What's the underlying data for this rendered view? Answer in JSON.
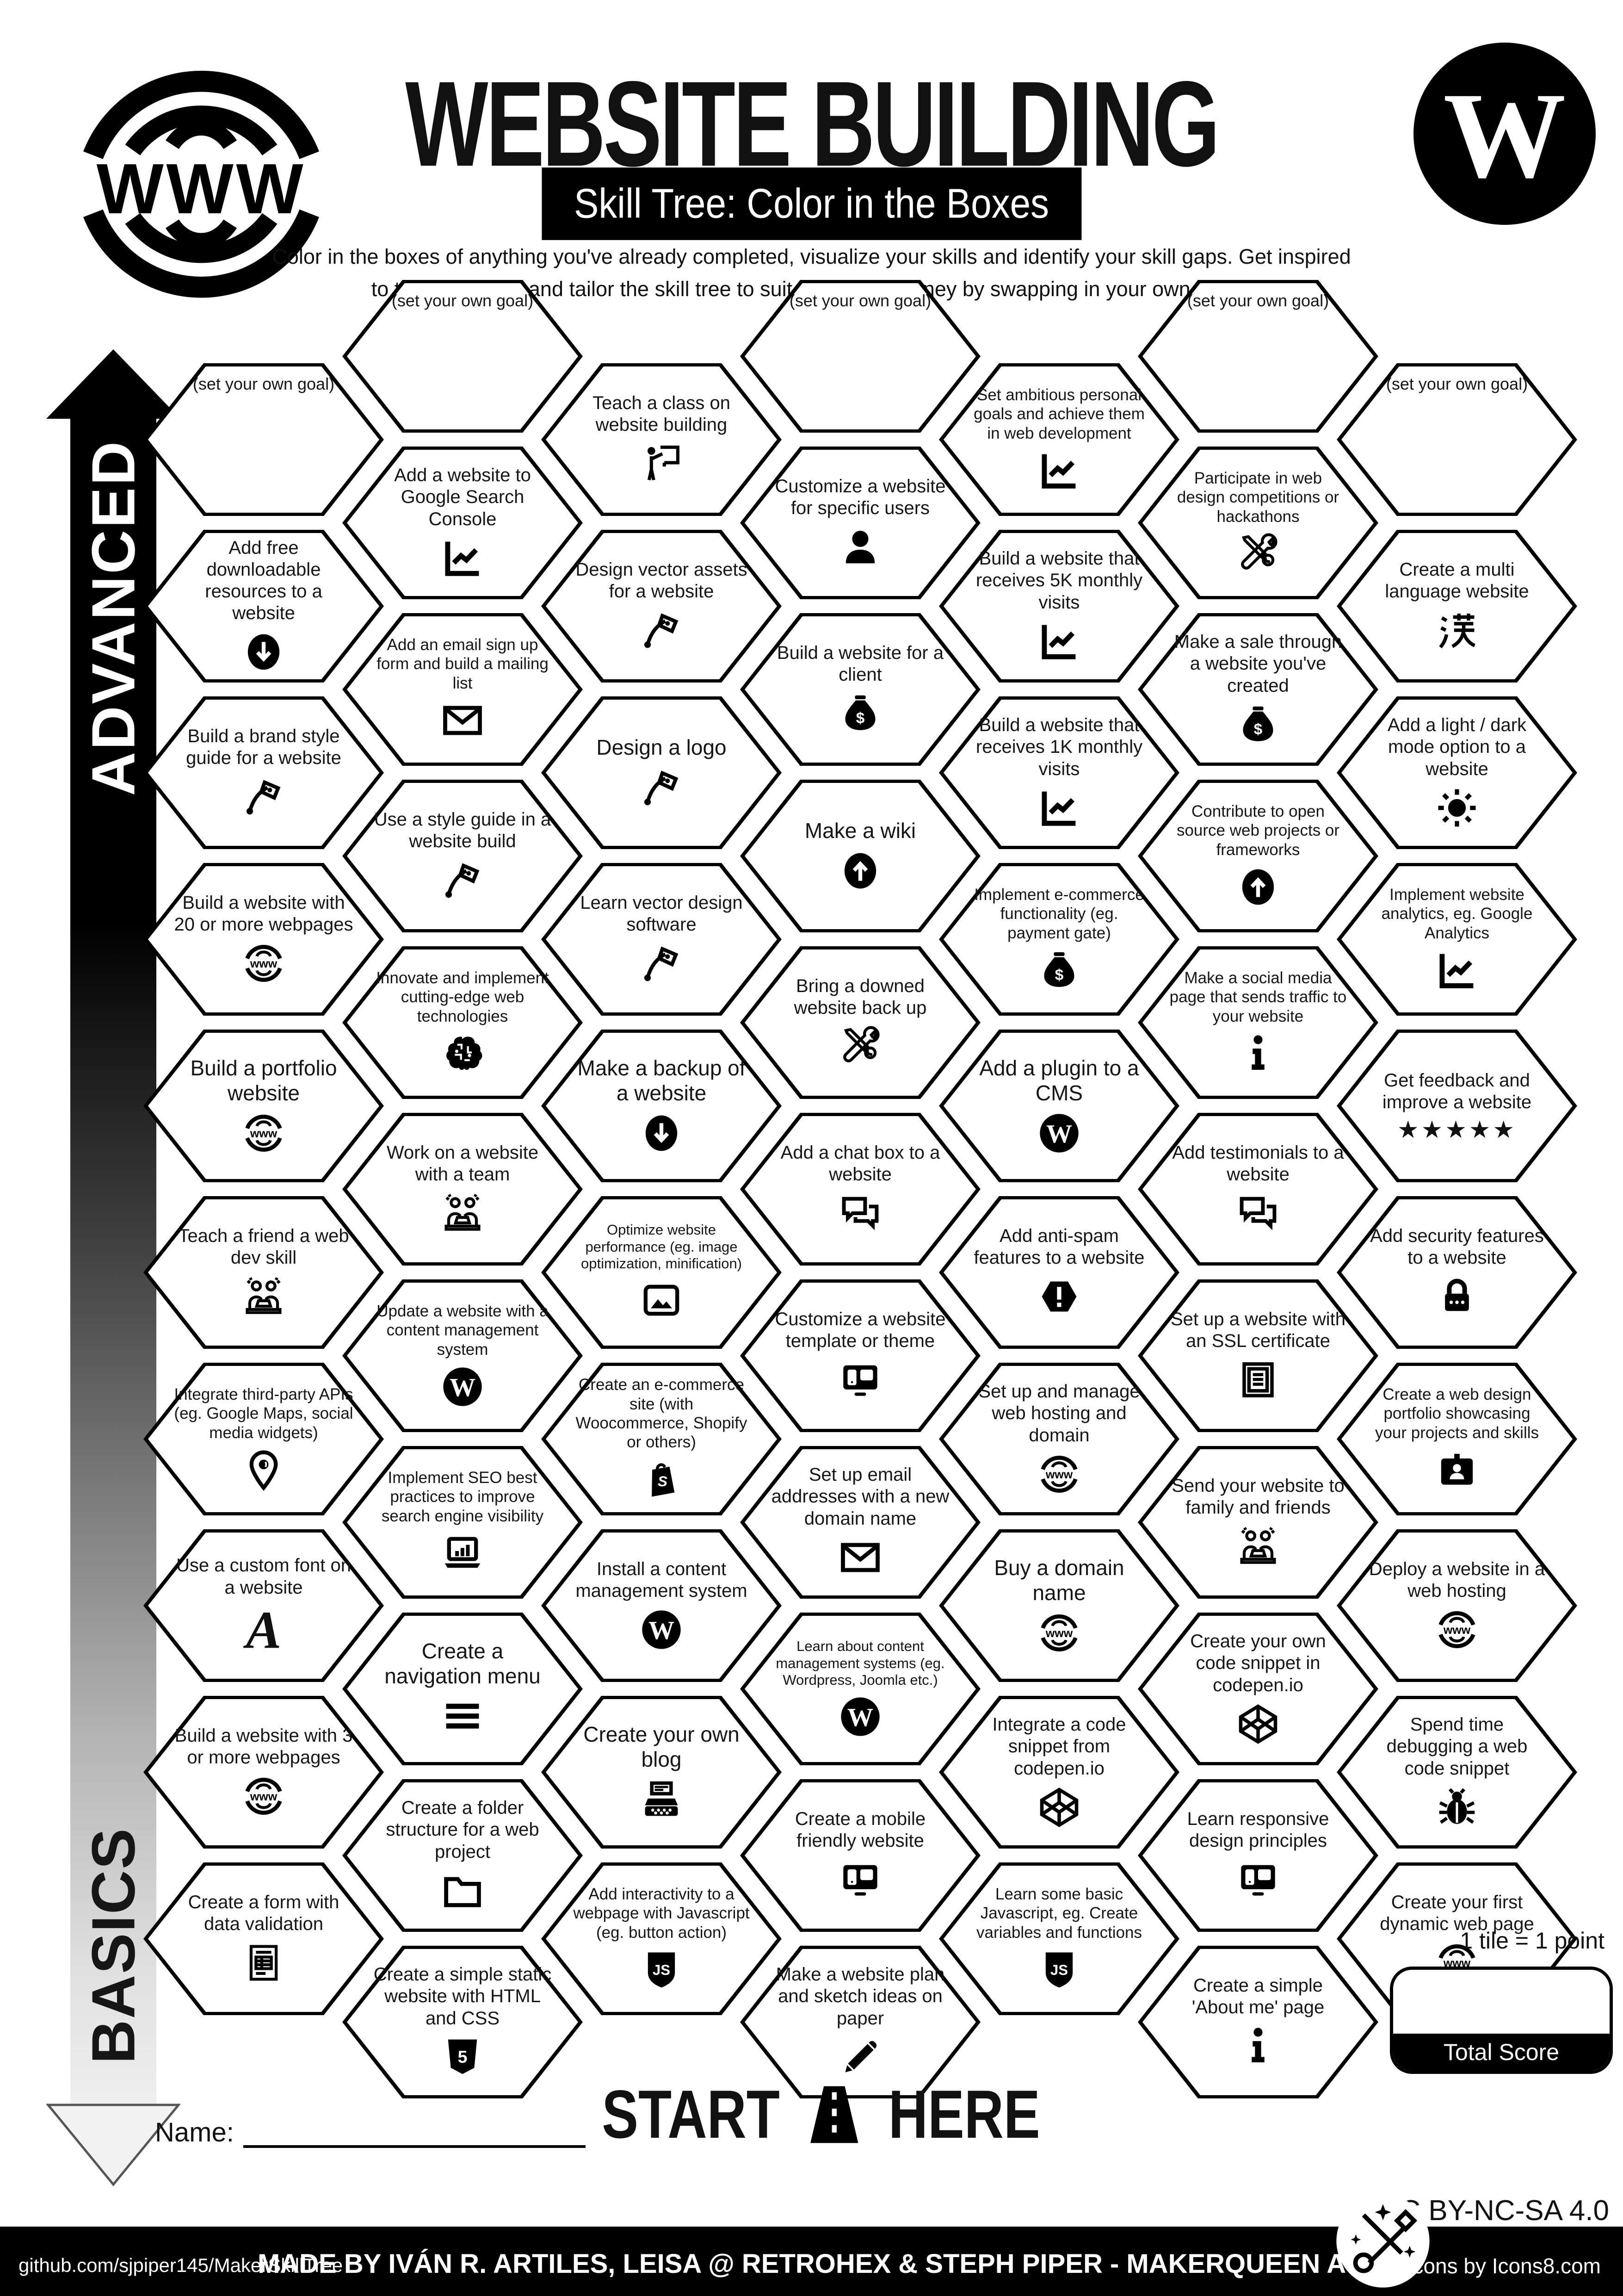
{
  "header": {
    "title": "WEBSITE BUILDING",
    "subtitle": "Skill Tree: Color in the Boxes",
    "description_line1": "Color in the boxes of anything you've already completed, visualize your skills and identify your skill gaps.  Get inspired",
    "description_line2": "to try new things and tailor the skill tree to suit your own journey by swapping in your own goals.",
    "logo_left": "www-globe-icon",
    "logo_right": "wordpress-icon"
  },
  "axis": {
    "top_label": "ADVANCED",
    "bottom_label": "BASICS"
  },
  "start_marker": {
    "start": "START",
    "here": "HERE",
    "icon": "road-icon"
  },
  "name_field": {
    "label": "Name:"
  },
  "score": {
    "tile_note": "1 tile = 1 point",
    "total_label": "Total Score"
  },
  "footer": {
    "left": "github.com/sjpiper145/MakerSkillTree",
    "center": "MADE BY IVÁN R. ARTILES, LEISA @ RETROHEX  & STEPH PIPER  -  MAKERQUEEN AU",
    "right": "Icons by Icons8.com",
    "license": "CC BY-NC-SA 4.0",
    "badge_icon": "tools-badge-icon"
  },
  "columns": [
    {
      "hexes": [
        {
          "label": "(set your own goal)",
          "icon": null,
          "goal": true
        },
        {
          "label": "Add free downloadable resources to a website",
          "icon": "download-circle"
        },
        {
          "label": "Build a brand style guide for a website",
          "icon": "pen-tool"
        },
        {
          "label": "Build a website with 20 or more webpages",
          "icon": "globe-www"
        },
        {
          "label": "Build a portfolio website",
          "icon": "globe-www"
        },
        {
          "label": "Teach a friend a web dev skill",
          "icon": "people-laptop"
        },
        {
          "label": "Integrate third-party APIs (eg. Google Maps, social media widgets)",
          "icon": "map-pin"
        },
        {
          "label": "Use a custom font on a website",
          "icon": "letter-a"
        },
        {
          "label": "Build a website with 3 or more webpages",
          "icon": "globe-www"
        },
        {
          "label": "Create a form with data validation",
          "icon": "form-doc"
        }
      ]
    },
    {
      "hexes": [
        {
          "label": "(set your own goal)",
          "icon": null,
          "goal": true
        },
        {
          "label": "Add a website to Google Search Console",
          "icon": "chart-line"
        },
        {
          "label": "Add an email sign up form and build a mailing list",
          "icon": "envelope"
        },
        {
          "label": "Use a style guide in a website build",
          "icon": "pen-tool"
        },
        {
          "label": "Innovate and implement cutting-edge web technologies",
          "icon": "brain-chip"
        },
        {
          "label": "Work on a website with a team",
          "icon": "people-laptop"
        },
        {
          "label": "Update a website with a content management system",
          "icon": "wordpress"
        },
        {
          "label": "Implement SEO best practices to improve search engine visibility",
          "icon": "laptop-chart"
        },
        {
          "label": "Create a navigation menu",
          "icon": "hamburger-menu"
        },
        {
          "label": "Create a folder structure for a web project",
          "icon": "folder"
        },
        {
          "label": "Create a simple static website with HTML and CSS",
          "icon": "html5-shield"
        }
      ]
    },
    {
      "hexes": [
        {
          "label": "Teach a class on website building",
          "icon": "person-whiteboard"
        },
        {
          "label": "Design vector assets for a website",
          "icon": "pen-tool"
        },
        {
          "label": "Design a logo",
          "icon": "pen-tool"
        },
        {
          "label": "Learn vector design software",
          "icon": "pen-tool"
        },
        {
          "label": "Make a backup of a website",
          "icon": "download-circle"
        },
        {
          "label": "Optimize website performance (eg. image optimization, minification)",
          "icon": "image-photo"
        },
        {
          "label": "Create an e-commerce site (with Woocommerce, Shopify or others)",
          "icon": "shopify-bag"
        },
        {
          "label": "Install a content management system",
          "icon": "wordpress"
        },
        {
          "label": "Create your own blog",
          "icon": "typewriter"
        },
        {
          "label": "Add interactivity to a webpage with Javascript (eg. button action)",
          "icon": "js-shield"
        }
      ]
    },
    {
      "hexes": [
        {
          "label": "(set your own goal)",
          "icon": null,
          "goal": true
        },
        {
          "label": "Customize a website for specific users",
          "icon": "person-bust"
        },
        {
          "label": "Build a website for a client",
          "icon": "money-bag"
        },
        {
          "label": "Make a wiki",
          "icon": "upload-circle"
        },
        {
          "label": "Bring a downed website back up",
          "icon": "tools-crossed"
        },
        {
          "label": "Add a chat box to a website",
          "icon": "chat-bubbles"
        },
        {
          "label": "Customize a website template or theme",
          "icon": "monitor-split"
        },
        {
          "label": "Set up email addresses with a new domain name",
          "icon": "envelope"
        },
        {
          "label": "Learn about content management systems (eg. Wordpress, Joomla etc.)",
          "icon": "wordpress"
        },
        {
          "label": "Create a mobile friendly website",
          "icon": "monitor-split"
        },
        {
          "label": "Make a website plan and sketch ideas on paper",
          "icon": "pencil"
        }
      ]
    },
    {
      "hexes": [
        {
          "label": "Set ambitious personal goals and achieve them in web development",
          "icon": "chart-line"
        },
        {
          "label": "Build a website that receives 5K monthly visits",
          "icon": "chart-line"
        },
        {
          "label": "Build a website that receives 1K monthly visits",
          "icon": "chart-line"
        },
        {
          "label": "Implement e-commerce functionality (eg. payment gate)",
          "icon": "money-bag"
        },
        {
          "label": "Add a plugin to a CMS",
          "icon": "wordpress"
        },
        {
          "label": "Add anti-spam features to a website",
          "icon": "hexagon-exclaim"
        },
        {
          "label": "Set up and manage web hosting and domain",
          "icon": "globe-www"
        },
        {
          "label": "Buy a domain name",
          "icon": "globe-www"
        },
        {
          "label": "Integrate a code snippet from codepen.io",
          "icon": "codepen-cube"
        },
        {
          "label": "Learn some basic Javascript, eg. Create variables and functions",
          "icon": "js-shield"
        }
      ]
    },
    {
      "hexes": [
        {
          "label": "(set your own goal)",
          "icon": null,
          "goal": true
        },
        {
          "label": "Participate in web design competitions or hackathons",
          "icon": "tools-crossed"
        },
        {
          "label": "Make a sale through a website you've created",
          "icon": "money-bag"
        },
        {
          "label": "Contribute to open source web projects or frameworks",
          "icon": "upload-circle"
        },
        {
          "label": "Make a social media page that sends traffic to your website",
          "icon": "info-i"
        },
        {
          "label": "Add testimonials to a website",
          "icon": "chat-bubbles"
        },
        {
          "label": "Set up a website with an SSL certificate",
          "icon": "certificate-doc"
        },
        {
          "label": "Send your website to family and friends",
          "icon": "people-laptop"
        },
        {
          "label": "Create your own code snippet in codepen.io",
          "icon": "codepen-cube"
        },
        {
          "label": "Learn responsive design principles",
          "icon": "monitor-split"
        },
        {
          "label": "Create a simple 'About me' page",
          "icon": "info-i"
        }
      ]
    },
    {
      "hexes": [
        {
          "label": "(set your own goal)",
          "icon": null,
          "goal": true
        },
        {
          "label": "Create a multi language website",
          "icon": "kanji"
        },
        {
          "label": "Add a light / dark mode option to a website",
          "icon": "sun"
        },
        {
          "label": "Implement website analytics, eg. Google Analytics",
          "icon": "chart-line"
        },
        {
          "label": "Get feedback and improve a website",
          "icon": "stars-five"
        },
        {
          "label": "Add security features to a website",
          "icon": "padlock"
        },
        {
          "label": "Create a web design portfolio showcasing your projects and skills",
          "icon": "id-badge"
        },
        {
          "label": "Deploy a website in a web hosting",
          "icon": "globe-www"
        },
        {
          "label": "Spend time debugging a web code snippet",
          "icon": "bug"
        },
        {
          "label": "Create your first dynamic web page",
          "icon": "globe-www"
        }
      ]
    }
  ]
}
